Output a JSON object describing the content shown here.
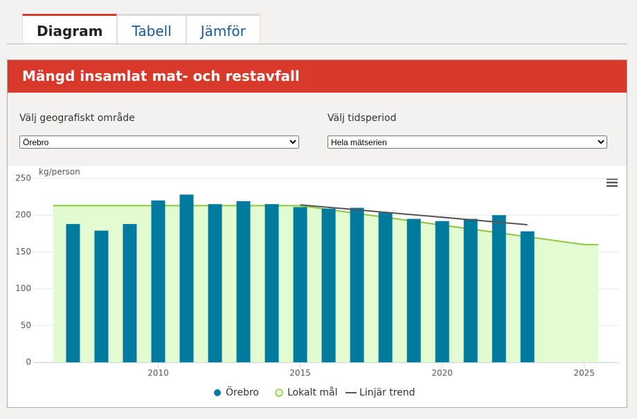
{
  "tabs": [
    "Diagram",
    "Tabell",
    "Jämför"
  ],
  "panel_title": "Mängd insamlat mat- och restavfall",
  "filters": [
    {
      "label": "Välj geografiskt område",
      "selected": "Örebro"
    },
    {
      "label": "Välj tidsperiod",
      "selected": "Hela mätserien"
    }
  ],
  "chart_data": {
    "type": "bar",
    "y_label": "kg/person",
    "xlim": [
      2005.6,
      2026.2
    ],
    "xticks": [
      2010,
      2015,
      2020,
      2025
    ],
    "ylim": [
      0,
      250
    ],
    "yticks": [
      0,
      50,
      100,
      150,
      200,
      250
    ],
    "grid": true,
    "series": [
      {
        "name": "Örebro",
        "type": "bar",
        "color": "#007b9e",
        "x": [
          2007,
          2008,
          2009,
          2010,
          2011,
          2012,
          2013,
          2014,
          2015,
          2016,
          2017,
          2018,
          2019,
          2020,
          2021,
          2022,
          2023
        ],
        "values": [
          188,
          179,
          188,
          220,
          228,
          215,
          219,
          215,
          211,
          209,
          210,
          204,
          195,
          192,
          195,
          200,
          178
        ]
      },
      {
        "name": "Lokalt mål",
        "type": "area",
        "color": "#8cc63f",
        "x": [
          2006.3,
          2015,
          2025,
          2025.5
        ],
        "values": [
          213,
          213,
          160,
          160
        ]
      },
      {
        "name": "Linjär trend",
        "type": "line",
        "color": "#555555",
        "x": [
          2015,
          2023
        ],
        "values": [
          214,
          187
        ]
      }
    ]
  }
}
